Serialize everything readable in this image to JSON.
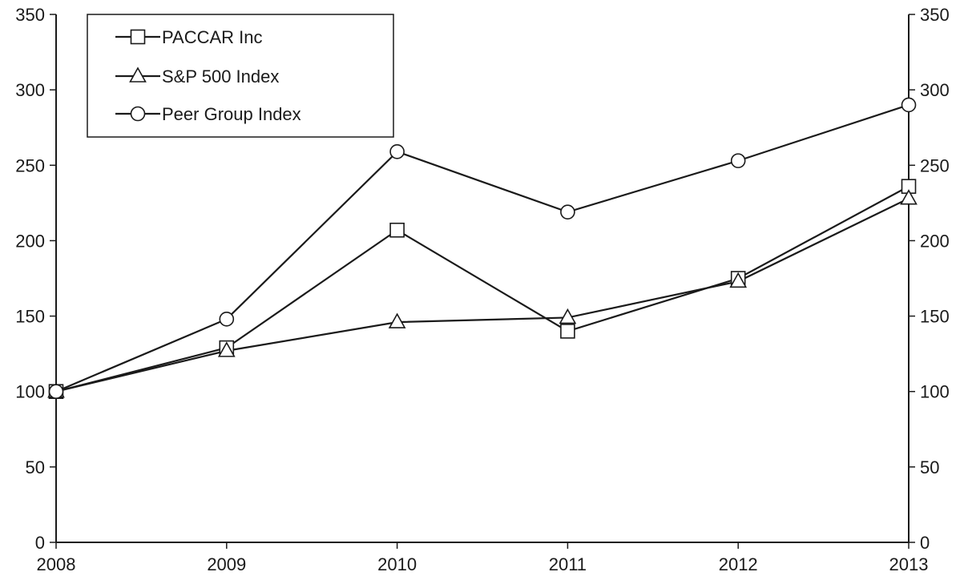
{
  "chart_data": {
    "type": "line",
    "x": [
      "2008",
      "2009",
      "2010",
      "2011",
      "2012",
      "2013"
    ],
    "y_ticks": [
      0,
      50,
      100,
      150,
      200,
      250,
      300,
      350
    ],
    "ylim": [
      0,
      350
    ],
    "grid": false,
    "legend_position": "top-left",
    "series": [
      {
        "name": "PACCAR Inc",
        "marker": "square",
        "values": [
          100,
          129,
          207,
          140,
          175,
          236
        ]
      },
      {
        "name": "S&P 500 Index",
        "marker": "triangle",
        "values": [
          100,
          127,
          146,
          149,
          173,
          228
        ]
      },
      {
        "name": "Peer Group Index",
        "marker": "circle",
        "values": [
          100,
          148,
          259,
          219,
          253,
          290
        ]
      }
    ],
    "colors": {
      "line": "#1a1a1a",
      "marker_fill": "#ffffff"
    }
  }
}
